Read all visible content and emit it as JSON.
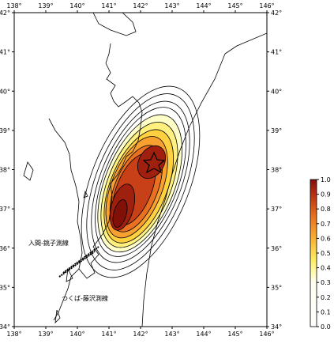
{
  "map": {
    "lon_ticks": [
      {
        "value": 138,
        "label": "138°"
      },
      {
        "value": 139,
        "label": "139°"
      },
      {
        "value": 140,
        "label": "140°"
      },
      {
        "value": 141,
        "label": "141°"
      },
      {
        "value": 142,
        "label": "142°"
      },
      {
        "value": 143,
        "label": "143°"
      },
      {
        "value": 144,
        "label": "144°"
      },
      {
        "value": 145,
        "label": "145°"
      },
      {
        "value": 146,
        "label": "146°"
      }
    ],
    "lat_ticks": [
      {
        "value": 34,
        "label": "34°"
      },
      {
        "value": 35,
        "label": "35°"
      },
      {
        "value": 36,
        "label": "36°"
      },
      {
        "value": 37,
        "label": "37°"
      },
      {
        "value": 38,
        "label": "38°"
      },
      {
        "value": 39,
        "label": "39°"
      },
      {
        "value": 40,
        "label": "40°"
      },
      {
        "value": 41,
        "label": "41°"
      },
      {
        "value": 42,
        "label": "42°"
      }
    ],
    "colorbar_ticks": [
      {
        "value": 0,
        "label": "0.0"
      },
      {
        "value": 0.1,
        "label": "0.1"
      },
      {
        "value": 0.2,
        "label": "0.2"
      },
      {
        "value": 0.3,
        "label": "0.3"
      },
      {
        "value": 0.4,
        "label": "0.4"
      },
      {
        "value": 0.5,
        "label": "0.5"
      },
      {
        "value": 0.6,
        "label": "0.6"
      },
      {
        "value": 0.7,
        "label": "0.7"
      },
      {
        "value": 0.8,
        "label": "0.8"
      },
      {
        "value": 0.9,
        "label": "0.9"
      },
      {
        "value": 1,
        "label": "1.0"
      }
    ],
    "annotations": [
      "入間-銚子測線",
      "つくば-藤沢測線"
    ]
  }
}
